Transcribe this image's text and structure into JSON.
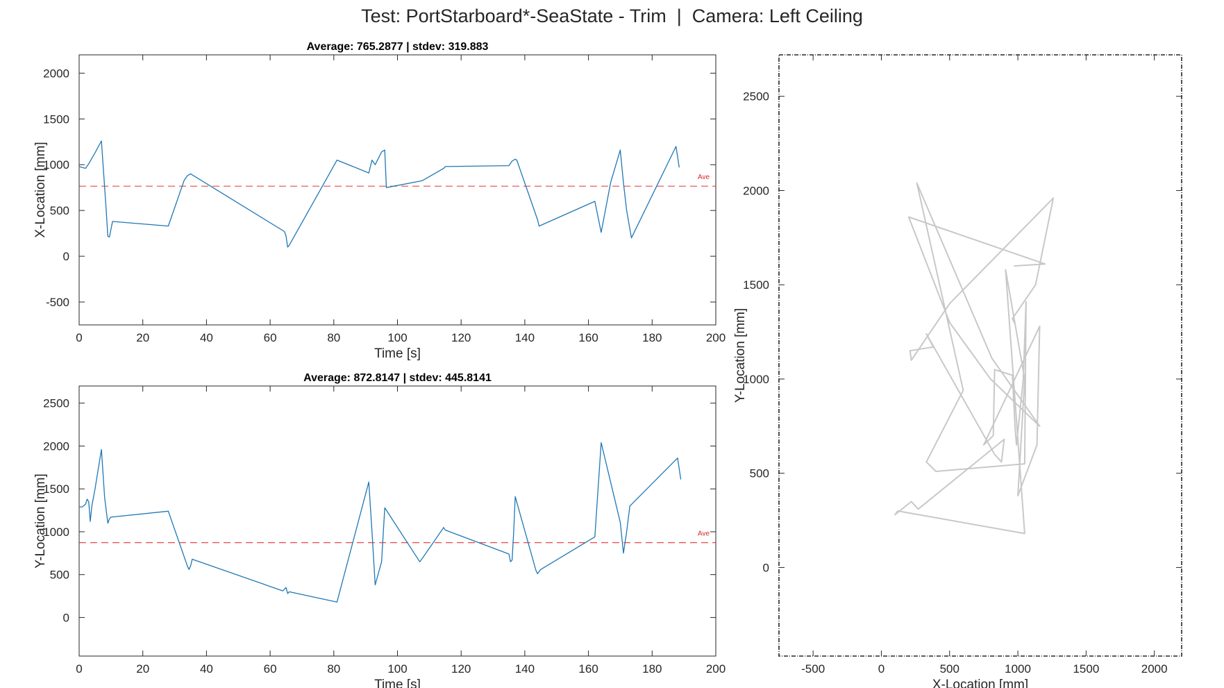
{
  "figure": {
    "title": "Test: PortStarboard*-SeaState - Trim  |  Camera: Left Ceiling"
  },
  "colors": {
    "line": "#1f77b4",
    "average": "#e41a1c",
    "trajectory": "#c8c8c8",
    "axis": "#262626"
  },
  "chart_data": [
    {
      "id": "x_vs_time",
      "type": "line",
      "title": "Average: 765.2877  |  stdev: 319.883",
      "xlabel": "Time [s]",
      "ylabel": "X-Location [mm]",
      "xlim": [
        0,
        200
      ],
      "ylim": [
        -750,
        2200
      ],
      "xticks": [
        0,
        20,
        40,
        60,
        80,
        100,
        120,
        140,
        160,
        180,
        200
      ],
      "yticks": [
        -500,
        0,
        500,
        1000,
        1500,
        2000
      ],
      "average": 765.2877,
      "average_label": "Ave",
      "series": [
        {
          "x": [
            0,
            1,
            2,
            3,
            5,
            7,
            8.5,
            9,
            9.5,
            10.5,
            28,
            33,
            34,
            35,
            64.5,
            65,
            65.5,
            66,
            81,
            91,
            92,
            93,
            95,
            96,
            96.5,
            107,
            108,
            114.5,
            115,
            135,
            136,
            137,
            137.5,
            144,
            144.5,
            162,
            164,
            167,
            170,
            171,
            172,
            173.5,
            187.5,
            188.5
          ],
          "y": [
            980,
            970,
            960,
            1010,
            1130,
            1260,
            500,
            220,
            210,
            380,
            330,
            830,
            880,
            900,
            270,
            220,
            100,
            120,
            1050,
            910,
            1050,
            1000,
            1140,
            1160,
            750,
            820,
            830,
            960,
            980,
            990,
            1040,
            1060,
            1050,
            400,
            330,
            600,
            260,
            810,
            1160,
            800,
            500,
            200,
            1200,
            970
          ]
        }
      ]
    },
    {
      "id": "y_vs_time",
      "type": "line",
      "title": "Average: 872.8147  |  stdev: 445.8141",
      "xlabel": "Time [s]",
      "ylabel": "Y-Location [mm]",
      "xlim": [
        0,
        200
      ],
      "ylim": [
        -450,
        2700
      ],
      "xticks": [
        0,
        20,
        40,
        60,
        80,
        100,
        120,
        140,
        160,
        180,
        200
      ],
      "yticks": [
        0,
        500,
        1000,
        1500,
        2000,
        2500
      ],
      "average": 872.8147,
      "average_label": "Ave",
      "series": [
        {
          "x": [
            0,
            1,
            2,
            2.5,
            3,
            3.5,
            4,
            5,
            7,
            8,
            9,
            9.5,
            10,
            28,
            34,
            34.5,
            35,
            35.5,
            64,
            65,
            65.5,
            66,
            81,
            91,
            92,
            93,
            95,
            96,
            107,
            108,
            114.5,
            115,
            135,
            135.5,
            136,
            136.5,
            137,
            143.5,
            144,
            145,
            162,
            164,
            170,
            171,
            172,
            173,
            188,
            189
          ],
          "y": [
            1290,
            1290,
            1320,
            1380,
            1350,
            1120,
            1300,
            1500,
            1960,
            1400,
            1100,
            1150,
            1170,
            1240,
            600,
            560,
            600,
            680,
            310,
            350,
            280,
            300,
            180,
            1580,
            1000,
            380,
            650,
            1280,
            650,
            700,
            1050,
            1020,
            740,
            650,
            670,
            1000,
            1410,
            550,
            510,
            560,
            940,
            2040,
            1110,
            750,
            1000,
            1300,
            1860,
            1610
          ]
        }
      ]
    },
    {
      "id": "trajectory",
      "type": "line",
      "title": "",
      "xlabel": "X-Location [mm]",
      "ylabel": "Y-Location [mm]",
      "xlim": [
        -750,
        2200
      ],
      "ylim": [
        -470,
        2720
      ],
      "xticks": [
        -500,
        0,
        500,
        1000,
        1500,
        2000
      ],
      "yticks": [
        0,
        500,
        1000,
        1500,
        2000,
        2500
      ],
      "series": [
        {
          "x": [
            980,
            960,
            1130,
            1260,
            500,
            220,
            210,
            380,
            330,
            830,
            880,
            900,
            270,
            220,
            100,
            120,
            1050,
            910,
            1050,
            1000,
            1140,
            1160,
            750,
            820,
            830,
            960,
            980,
            990,
            1040,
            1060,
            1050,
            400,
            330,
            600,
            260,
            810,
            1160,
            800,
            500,
            200,
            1200,
            970
          ],
          "y": [
            1290,
            1320,
            1500,
            1960,
            1400,
            1100,
            1150,
            1170,
            1240,
            600,
            560,
            680,
            310,
            350,
            280,
            300,
            180,
            1580,
            1000,
            380,
            650,
            1280,
            650,
            700,
            1050,
            1020,
            740,
            650,
            1000,
            1410,
            550,
            510,
            560,
            940,
            2040,
            1110,
            750,
            1000,
            1300,
            1860,
            1610,
            1600
          ]
        }
      ]
    }
  ]
}
